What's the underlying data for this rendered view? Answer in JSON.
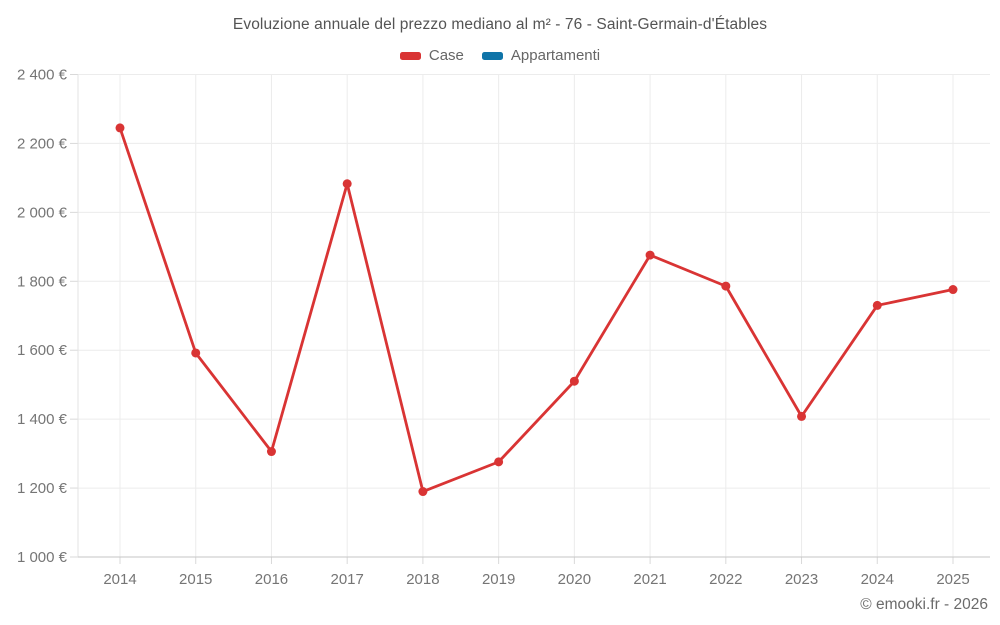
{
  "page": {
    "footer": "© emooki.fr - 2026"
  },
  "legend": {
    "items": [
      {
        "label": "Case",
        "color": "#d93434"
      },
      {
        "label": "Appartamenti",
        "color": "#0f74a8"
      }
    ]
  },
  "chart_data": {
    "type": "line",
    "title": "Evoluzione annuale del prezzo mediano al m² - 76 - Saint-Germain-d'Étables",
    "xlabel": "",
    "ylabel": "",
    "categories": [
      "2014",
      "2015",
      "2016",
      "2017",
      "2018",
      "2019",
      "2020",
      "2021",
      "2022",
      "2023",
      "2024",
      "2025"
    ],
    "series": [
      {
        "name": "Case",
        "color": "#d93434",
        "values": [
          2245,
          1592,
          1306,
          2083,
          1190,
          1276,
          1510,
          1876,
          1786,
          1408,
          1730,
          1776
        ]
      },
      {
        "name": "Appartamenti",
        "color": "#0f74a8",
        "values": [
          null,
          null,
          null,
          null,
          null,
          null,
          null,
          null,
          null,
          null,
          null,
          null
        ]
      }
    ],
    "ylim": [
      1000,
      2400
    ],
    "yticks": [
      {
        "value": 1000,
        "label": "1 000 €"
      },
      {
        "value": 1200,
        "label": "1 200 €"
      },
      {
        "value": 1400,
        "label": "1 400 €"
      },
      {
        "value": 1600,
        "label": "1 600 €"
      },
      {
        "value": 1800,
        "label": "1 800 €"
      },
      {
        "value": 2000,
        "label": "2 000 €"
      },
      {
        "value": 2200,
        "label": "2 200 €"
      },
      {
        "value": 2400,
        "label": "2 400 €"
      }
    ],
    "grid": true,
    "legend_position": "top",
    "colors": {
      "gridline": "#ececec",
      "tick": "#d9d9d9",
      "x_axis_line": "#c6c6c6",
      "y_axis_line": "#e3e3e3",
      "axis_text": "#757575",
      "title_text": "#545454"
    }
  }
}
